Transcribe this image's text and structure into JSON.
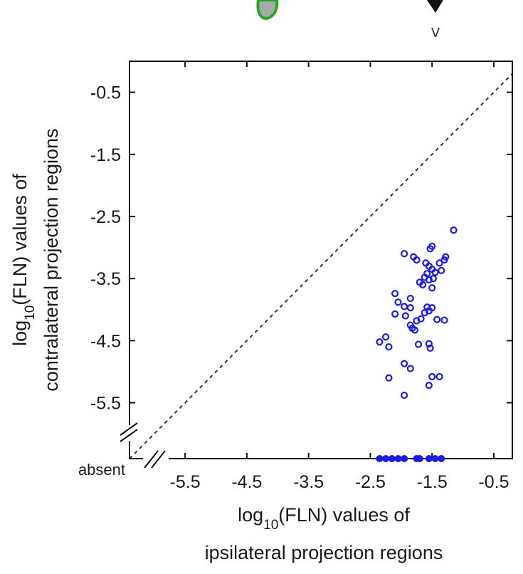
{
  "chart_data": {
    "type": "scatter",
    "xlabel_lines": [
      "log|10|(FLN) values of",
      "ipsilateral projection regions"
    ],
    "ylabel_lines": [
      "log|10|(FLN) values of",
      "contralateral projection regions"
    ],
    "xlim": [
      -6.4,
      -0.2
    ],
    "ylim": [
      -6.4,
      0
    ],
    "x_ticks": [
      -5.5,
      -4.5,
      -3.5,
      -2.5,
      -1.5,
      -0.5
    ],
    "x_tick_labels": [
      "-5.5",
      "-4.5",
      "-3.5",
      "-2.5",
      "-1.5",
      "-0.5"
    ],
    "y_ticks": [
      -0.5,
      -1.5,
      -2.5,
      -3.5,
      -4.5,
      -5.5
    ],
    "y_tick_labels": [
      "-0.5",
      "-1.5",
      "-2.5",
      "-3.5",
      "-4.5",
      "-5.5"
    ],
    "absent_label": "absent",
    "absent_value": -6.4,
    "diagonal": "y = x (dashed)",
    "marker_label": "V",
    "series": [
      {
        "marker": "open-circle",
        "color": "#1a1aee",
        "points": [
          [
            -1.15,
            -2.72
          ],
          [
            -1.5,
            -2.98
          ],
          [
            -1.53,
            -3.02
          ],
          [
            -1.95,
            -3.1
          ],
          [
            -1.8,
            -3.15
          ],
          [
            -1.75,
            -3.2
          ],
          [
            -1.6,
            -3.25
          ],
          [
            -1.28,
            -3.15
          ],
          [
            -1.3,
            -3.2
          ],
          [
            -1.38,
            -3.25
          ],
          [
            -1.55,
            -3.3
          ],
          [
            -1.5,
            -3.35
          ],
          [
            -1.45,
            -3.4
          ],
          [
            -1.35,
            -3.37
          ],
          [
            -1.58,
            -3.42
          ],
          [
            -1.62,
            -3.48
          ],
          [
            -1.55,
            -3.52
          ],
          [
            -1.48,
            -3.5
          ],
          [
            -1.7,
            -3.56
          ],
          [
            -1.65,
            -3.6
          ],
          [
            -1.5,
            -3.65
          ],
          [
            -2.1,
            -3.74
          ],
          [
            -1.85,
            -3.82
          ],
          [
            -2.05,
            -3.88
          ],
          [
            -1.95,
            -3.95
          ],
          [
            -1.85,
            -3.97
          ],
          [
            -1.58,
            -3.96
          ],
          [
            -1.5,
            -3.97
          ],
          [
            -1.55,
            -4.02
          ],
          [
            -1.62,
            -4.05
          ],
          [
            -2.1,
            -4.07
          ],
          [
            -1.93,
            -4.1
          ],
          [
            -1.75,
            -4.18
          ],
          [
            -1.68,
            -4.15
          ],
          [
            -1.42,
            -4.16
          ],
          [
            -1.3,
            -4.17
          ],
          [
            -1.85,
            -4.25
          ],
          [
            -1.82,
            -4.3
          ],
          [
            -1.78,
            -4.33
          ],
          [
            -2.35,
            -4.52
          ],
          [
            -2.25,
            -4.44
          ],
          [
            -2.2,
            -4.6
          ],
          [
            -1.72,
            -4.56
          ],
          [
            -1.55,
            -4.55
          ],
          [
            -1.53,
            -4.62
          ],
          [
            -1.95,
            -4.87
          ],
          [
            -1.85,
            -4.95
          ],
          [
            -2.2,
            -5.1
          ],
          [
            -1.5,
            -5.08
          ],
          [
            -1.38,
            -5.08
          ],
          [
            -1.55,
            -5.22
          ],
          [
            -1.95,
            -5.38
          ]
        ]
      },
      {
        "marker": "filled-circle",
        "color": "#1a1aee",
        "note": "absent contralateral",
        "x_values": [
          -2.35,
          -2.25,
          -2.15,
          -2.05,
          -1.95,
          -1.75,
          -1.7,
          -1.55,
          -1.45,
          -1.35
        ]
      }
    ]
  }
}
